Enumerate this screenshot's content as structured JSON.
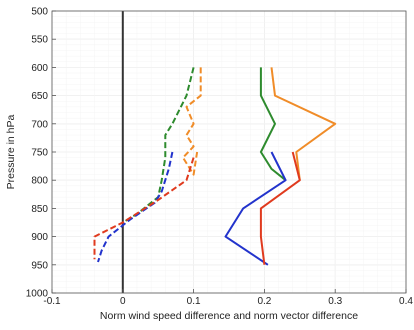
{
  "chart_data": {
    "type": "line",
    "title": "",
    "xlabel": "Norm wind speed difference and norm vector difference",
    "ylabel": "Pressure in hPa",
    "xlim": [
      -0.1,
      0.4
    ],
    "ylim": [
      500,
      1000
    ],
    "y_reversed": true,
    "grid": true,
    "legend": "none",
    "x_ticks": [
      -0.1,
      0,
      0.1,
      0.2,
      0.3,
      0.4
    ],
    "x_tick_labels": [
      "-0.1",
      "0",
      "0.1",
      "0.2",
      "0.3",
      "0.4"
    ],
    "y_ticks": [
      500,
      550,
      600,
      650,
      700,
      750,
      800,
      850,
      900,
      950,
      1000
    ],
    "y_tick_labels": [
      "500",
      "550",
      "600",
      "650",
      "700",
      "750",
      "800",
      "850",
      "900",
      "950",
      "1000"
    ],
    "reference_line": {
      "x": 0,
      "color": "#333333"
    },
    "series": [
      {
        "color": "#2e8b2e",
        "dashed": true,
        "x": [
          0.1,
          0.09,
          0.07,
          0.06,
          0.06,
          0.055,
          0.05,
          0.02,
          0
        ],
        "y": [
          600,
          650,
          700,
          720,
          760,
          800,
          830,
          860,
          875
        ]
      },
      {
        "color": "#f08c28",
        "dashed": true,
        "x": [
          0.11,
          0.11,
          0.09,
          0.1,
          0.09,
          0.1,
          0.085,
          0.1,
          0.105
        ],
        "y": [
          600,
          650,
          670,
          700,
          720,
          740,
          760,
          790,
          750
        ]
      },
      {
        "color": "#2233cc",
        "dashed": true,
        "x": [
          0.07,
          0.065,
          0.055,
          0.045,
          0.01,
          -0.02,
          -0.03,
          -0.035
        ],
        "y": [
          750,
          780,
          820,
          840,
          870,
          900,
          925,
          945
        ]
      },
      {
        "color": "#e03a1e",
        "dashed": true,
        "x": [
          0.1,
          0.09,
          0.05,
          0.0,
          -0.04,
          -0.04
        ],
        "y": [
          760,
          800,
          835,
          875,
          900,
          940
        ]
      },
      {
        "color": "#2e8b2e",
        "dashed": false,
        "x": [
          0.195,
          0.195,
          0.215,
          0.195,
          0.21,
          0.23
        ],
        "y": [
          600,
          650,
          700,
          750,
          780,
          800
        ]
      },
      {
        "color": "#f08c28",
        "dashed": false,
        "x": [
          0.21,
          0.215,
          0.3,
          0.245,
          0.25
        ],
        "y": [
          600,
          650,
          700,
          750,
          800
        ]
      },
      {
        "color": "#2233cc",
        "dashed": false,
        "x": [
          0.21,
          0.23,
          0.17,
          0.145,
          0.205
        ],
        "y": [
          750,
          800,
          850,
          900,
          950
        ]
      },
      {
        "color": "#e03a1e",
        "dashed": false,
        "x": [
          0.24,
          0.25,
          0.195,
          0.195,
          0.2
        ],
        "y": [
          750,
          800,
          850,
          900,
          950
        ]
      }
    ]
  }
}
